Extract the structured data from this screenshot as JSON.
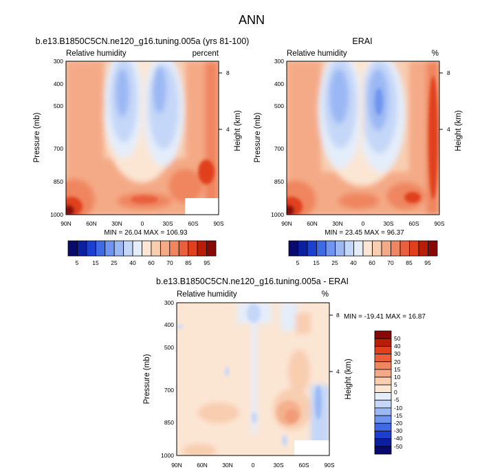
{
  "figure": {
    "title": "ANN"
  },
  "panels": [
    {
      "id": "model",
      "title": "b.e13.B1850C5CN.ne120_g16.tuning.005a (yrs 81-100)",
      "left_label": "Relative humidity",
      "right_label": "percent",
      "stats": "MIN = 26.04  MAX = 106.93",
      "colorbar": "main"
    },
    {
      "id": "obs",
      "title": "ERAI",
      "left_label": "Relative humidity",
      "right_label": "%",
      "stats": "MIN = 23.45  MAX = 96.37",
      "colorbar": "main"
    },
    {
      "id": "diff",
      "title": "b.e13.B1850C5CN.ne120_g16.tuning.005a - ERAI",
      "left_label": "Relative humidity",
      "right_label": "%",
      "stats": "MIN = -19.41  MAX =  16.87",
      "colorbar": "diff"
    }
  ],
  "chart_data": [
    {
      "type": "heatmap",
      "title": "b.e13.B1850C5CN.ne120_g16.tuning.005a (yrs 81-100)",
      "variable": "Relative humidity",
      "units": "percent",
      "xlabel": "",
      "ylabel": "Pressure (mb)",
      "y2label": "Height (km)",
      "x_ticks": [
        "90N",
        "60N",
        "30N",
        "0",
        "30S",
        "60S",
        "90S"
      ],
      "x_tick_values": [
        90,
        60,
        30,
        0,
        -30,
        -60,
        -90
      ],
      "y_ticks": [
        300,
        400,
        500,
        700,
        850,
        1000
      ],
      "y2_ticks": [
        8,
        4
      ],
      "ylim": [
        1000,
        300
      ],
      "y_scale": "log",
      "min": 26.04,
      "max": 106.93,
      "contour_levels": [
        5,
        10,
        15,
        20,
        25,
        30,
        40,
        50,
        60,
        65,
        70,
        75,
        80,
        85,
        90,
        95
      ],
      "masked_region": "below surface near 55S-90S, 930-1000 mb"
    },
    {
      "type": "heatmap",
      "title": "ERAI",
      "variable": "Relative humidity",
      "units": "%",
      "xlabel": "",
      "ylabel": "Pressure (mb)",
      "y2label": "Height (km)",
      "x_ticks": [
        "90N",
        "60N",
        "30N",
        "0",
        "30S",
        "60S",
        "90S"
      ],
      "x_tick_values": [
        90,
        60,
        30,
        0,
        -30,
        -60,
        -90
      ],
      "y_ticks": [
        300,
        400,
        500,
        700,
        850,
        1000
      ],
      "y2_ticks": [
        8,
        4
      ],
      "ylim": [
        1000,
        300
      ],
      "y_scale": "log",
      "min": 23.45,
      "max": 96.37,
      "contour_levels": [
        5,
        10,
        15,
        20,
        25,
        30,
        40,
        50,
        60,
        65,
        70,
        75,
        80,
        85,
        90,
        95
      ]
    },
    {
      "type": "heatmap",
      "title": "b.e13.B1850C5CN.ne120_g16.tuning.005a - ERAI",
      "variable": "Relative humidity",
      "units": "%",
      "xlabel": "",
      "ylabel": "Pressure (mb)",
      "y2label": "Height (km)",
      "x_ticks": [
        "90N",
        "60N",
        "30N",
        "0",
        "30S",
        "60S",
        "90S"
      ],
      "x_tick_values": [
        90,
        60,
        30,
        0,
        -30,
        -60,
        -90
      ],
      "y_ticks": [
        300,
        400,
        500,
        700,
        850,
        1000
      ],
      "y2_ticks": [
        8,
        4
      ],
      "ylim": [
        1000,
        300
      ],
      "y_scale": "log",
      "min": -19.41,
      "max": 16.87,
      "contour_levels": [
        -50,
        -40,
        -30,
        -20,
        -15,
        -10,
        -5,
        0,
        5,
        10,
        15,
        20,
        30,
        40,
        50
      ],
      "masked_region": "below surface near 55S-90S, 930-1000 mb"
    }
  ],
  "colorbars": {
    "main": {
      "orientation": "horizontal",
      "labels": [
        "5",
        "15",
        "25",
        "40",
        "60",
        "70",
        "85",
        "95"
      ],
      "colors": [
        "#0a0a6e",
        "#0c1f9e",
        "#1b3fd0",
        "#3f6ae6",
        "#6f95f0",
        "#9bb8f4",
        "#c5d7f8",
        "#e4edfa",
        "#fbe6d4",
        "#f8cdb0",
        "#f4aa86",
        "#ef8660",
        "#ea5f3c",
        "#e0401c",
        "#b91d0a",
        "#880808"
      ]
    },
    "diff": {
      "orientation": "vertical",
      "labels": [
        "50",
        "40",
        "30",
        "20",
        "15",
        "10",
        "5",
        "0",
        "-5",
        "-10",
        "-15",
        "-20",
        "-30",
        "-40",
        "-50"
      ],
      "colors": [
        "#880808",
        "#b91d0a",
        "#e0401c",
        "#ea5f3c",
        "#ef8660",
        "#f4aa86",
        "#f8cdb0",
        "#fbe6d4",
        "#e4edfa",
        "#c5d7f8",
        "#9bb8f4",
        "#6f95f0",
        "#3f6ae6",
        "#1b3fd0",
        "#0c1f9e",
        "#0a0a6e"
      ]
    }
  }
}
